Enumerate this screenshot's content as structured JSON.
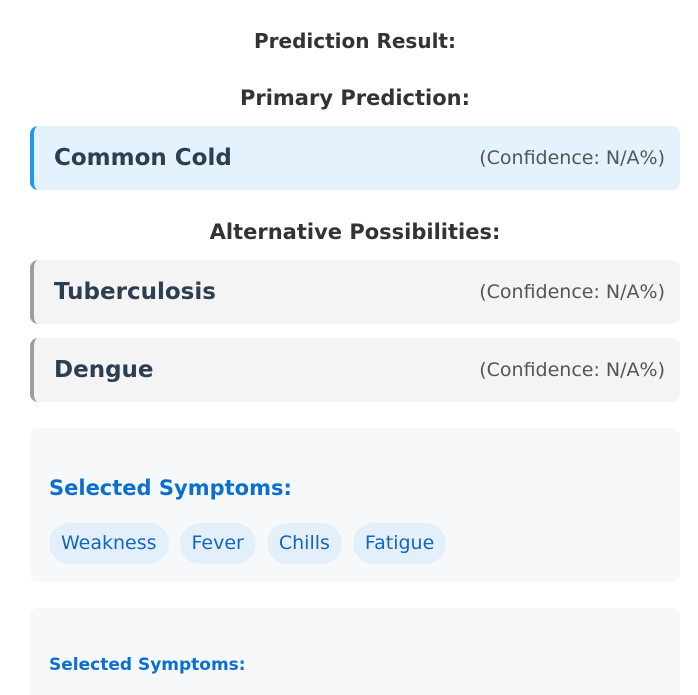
{
  "result": {
    "title": "Prediction Result:",
    "primary_heading": "Primary Prediction:",
    "primary": {
      "name": "Common Cold",
      "confidence": "(Confidence: N/A%)"
    },
    "alternatives_heading": "Alternative Possibilities:",
    "alternatives": [
      {
        "name": "Tuberculosis",
        "confidence": "(Confidence: N/A%)"
      },
      {
        "name": "Dengue",
        "confidence": "(Confidence: N/A%)"
      }
    ]
  },
  "symptoms_panel": {
    "heading": "Selected Symptoms:",
    "chips": [
      "Weakness",
      "Fever",
      "Chills",
      "Fatigue"
    ]
  },
  "symptoms_panel_2": {
    "heading": "Selected Symptoms:"
  },
  "colors": {
    "primary_accent": "#2196f3",
    "primary_bg": "#e3f2fd",
    "alt_accent": "#9e9e9e",
    "alt_bg": "#f4f4f4",
    "symptom_heading": "#0b6fd1",
    "chip_bg": "#e3f0fc",
    "chip_text": "#1565c0"
  }
}
